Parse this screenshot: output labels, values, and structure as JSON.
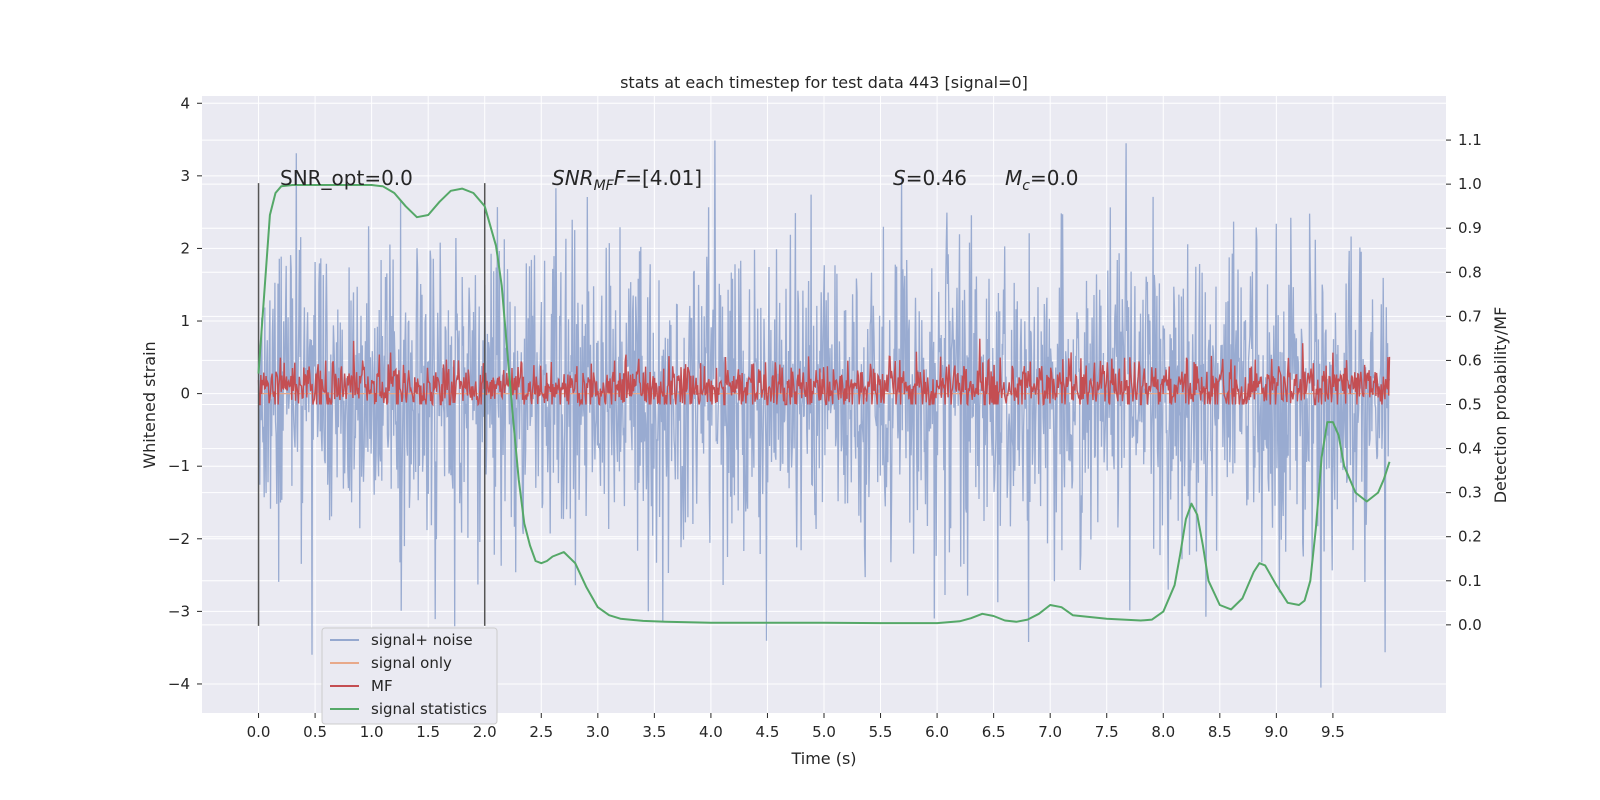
{
  "chart_data": {
    "type": "line",
    "title": "stats at each timestep for test data 443 [signal=0]",
    "xlabel": "Time (s)",
    "ylabel_left": "Whitened strain",
    "ylabel_right": "Detection probability/MF",
    "xlim": [
      -0.5,
      10.5
    ],
    "ylim_left": [
      -4.4,
      4.1
    ],
    "ylim_right": [
      -0.2,
      1.2
    ],
    "x_ticks": [
      "0.0",
      "0.5",
      "1.0",
      "1.5",
      "2.0",
      "2.5",
      "3.0",
      "3.5",
      "4.0",
      "4.5",
      "5.0",
      "5.5",
      "6.0",
      "6.5",
      "7.0",
      "7.5",
      "8.0",
      "8.5",
      "9.0",
      "9.5"
    ],
    "y_left_ticks": [
      "4",
      "3",
      "2",
      "1",
      "0",
      "−1",
      "−2",
      "−3",
      "−4"
    ],
    "y_right_ticks": [
      "1.1",
      "1.0",
      "0.9",
      "0.8",
      "0.7",
      "0.6",
      "0.5",
      "0.4",
      "0.3",
      "0.2",
      "0.1",
      "0.0"
    ],
    "grid": true,
    "legend_position": "lower-left",
    "annotations": {
      "snr_opt": "SNR_opt=0.0",
      "snr_mf": "=[4.01]",
      "s_val": "=0.46",
      "mc_val": "=0.0"
    },
    "vertical_lines_x": [
      0.0,
      2.0
    ],
    "series": [
      {
        "name": "signal+ noise",
        "color": "#95a8cf",
        "axis": "left",
        "x_range": [
          0.0,
          10.0
        ],
        "envelope_max": 3.75,
        "envelope_min": -4.05
      },
      {
        "name": "signal only",
        "color": "#e8a98a",
        "axis": "left",
        "x_range": [
          0.0,
          10.0
        ],
        "constant": 0.0
      },
      {
        "name": "MF",
        "color": "#c44e52",
        "axis": "right",
        "x_range": [
          0.0,
          10.0
        ],
        "center": 0.54,
        "envelope_max": 0.67,
        "envelope_min": 0.5
      },
      {
        "name": "signal statistics",
        "color": "#55a868",
        "axis": "right",
        "x": [
          0.0,
          0.05,
          0.1,
          0.15,
          0.2,
          0.3,
          0.5,
          0.8,
          1.0,
          1.1,
          1.2,
          1.3,
          1.4,
          1.5,
          1.6,
          1.7,
          1.8,
          1.9,
          2.0,
          2.1,
          2.15,
          2.2,
          2.25,
          2.3,
          2.35,
          2.4,
          2.45,
          2.5,
          2.55,
          2.6,
          2.7,
          2.8,
          2.9,
          3.0,
          3.1,
          3.2,
          3.4,
          3.6,
          4.0,
          4.5,
          5.0,
          5.5,
          6.0,
          6.2,
          6.3,
          6.4,
          6.5,
          6.6,
          6.7,
          6.8,
          6.9,
          7.0,
          7.1,
          7.2,
          7.5,
          7.8,
          7.9,
          8.0,
          8.1,
          8.15,
          8.2,
          8.25,
          8.3,
          8.35,
          8.4,
          8.5,
          8.6,
          8.7,
          8.8,
          8.85,
          8.9,
          9.0,
          9.1,
          9.2,
          9.25,
          9.3,
          9.35,
          9.4,
          9.45,
          9.5,
          9.55,
          9.6,
          9.7,
          9.8,
          9.9,
          9.95,
          10.0
        ],
        "y": [
          0.57,
          0.75,
          0.93,
          0.98,
          0.995,
          0.998,
          0.998,
          0.998,
          0.998,
          0.995,
          0.98,
          0.95,
          0.925,
          0.93,
          0.96,
          0.985,
          0.99,
          0.98,
          0.95,
          0.86,
          0.77,
          0.62,
          0.47,
          0.33,
          0.23,
          0.18,
          0.145,
          0.14,
          0.145,
          0.155,
          0.165,
          0.14,
          0.085,
          0.04,
          0.022,
          0.014,
          0.009,
          0.007,
          0.005,
          0.005,
          0.005,
          0.004,
          0.004,
          0.008,
          0.015,
          0.025,
          0.02,
          0.01,
          0.007,
          0.012,
          0.025,
          0.045,
          0.04,
          0.022,
          0.014,
          0.01,
          0.012,
          0.03,
          0.09,
          0.16,
          0.24,
          0.275,
          0.25,
          0.18,
          0.1,
          0.045,
          0.035,
          0.06,
          0.12,
          0.14,
          0.135,
          0.09,
          0.05,
          0.045,
          0.055,
          0.1,
          0.22,
          0.38,
          0.46,
          0.46,
          0.43,
          0.36,
          0.3,
          0.28,
          0.3,
          0.33,
          0.37
        ]
      }
    ]
  }
}
